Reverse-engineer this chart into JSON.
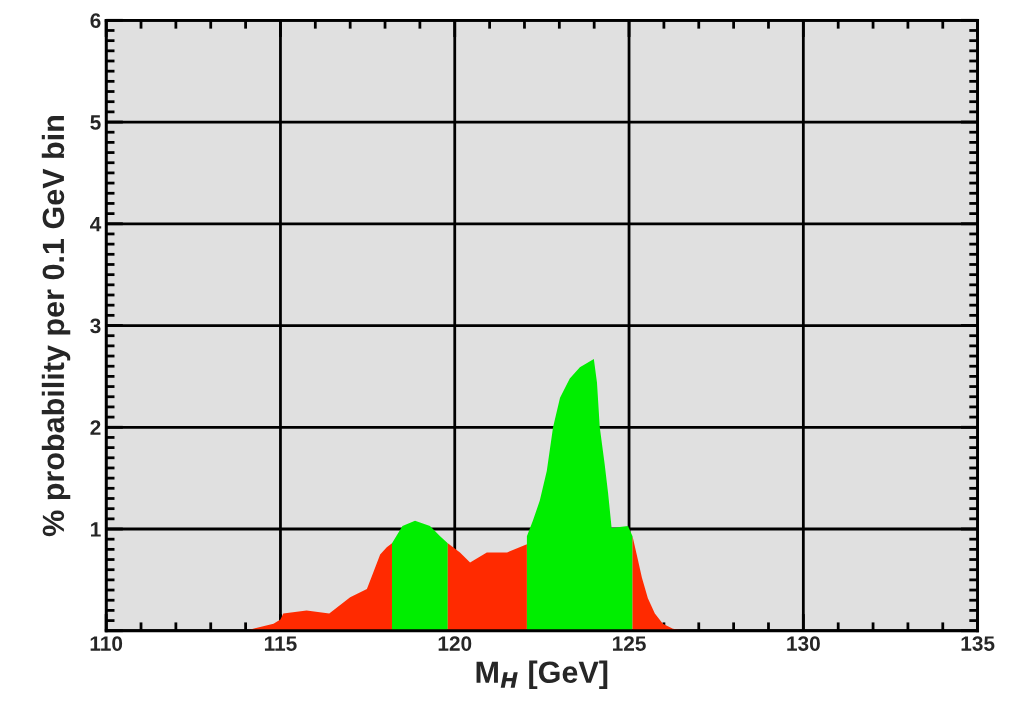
{
  "chart_data": {
    "type": "area",
    "xlabel": "M$_{H}$ [GeV]",
    "ylabel": "% probability per 0.1 GeV bin",
    "xlim": [
      110,
      135
    ],
    "ylim": [
      0,
      6
    ],
    "xticks": [
      110,
      115,
      120,
      125,
      130,
      135
    ],
    "yticks": [
      {
        "value": 0,
        "label": null
      },
      1,
      2,
      3,
      4,
      5,
      6
    ],
    "grid": true,
    "series": [
      {
        "color": "#ff2a00",
        "x": [
          114.0,
          114.8,
          115.0,
          115.08,
          115.75,
          116.4,
          117.0,
          117.48,
          117.66,
          117.86,
          118.05,
          118.2
        ],
        "values": [
          0,
          0.07,
          0.11,
          0.17,
          0.2,
          0.17,
          0.33,
          0.41,
          0.57,
          0.75,
          0.82,
          0.86
        ]
      },
      {
        "color": "#00ee00",
        "x": [
          118.2,
          118.5,
          118.86,
          119.29,
          119.58,
          119.8
        ],
        "values": [
          0.86,
          1.03,
          1.08,
          1.03,
          0.93,
          0.86
        ]
      },
      {
        "color": "#ff2a00",
        "x": [
          119.8,
          120.15,
          120.44,
          120.92,
          121.5,
          122.07
        ],
        "values": [
          0.86,
          0.77,
          0.67,
          0.77,
          0.77,
          0.85
        ]
      },
      {
        "color": "#00ee00",
        "x": [
          122.07,
          122.24,
          122.44,
          122.64,
          122.82,
          123.02,
          123.3,
          123.59,
          123.99,
          124.08,
          124.16,
          124.3,
          124.4,
          124.5,
          124.97,
          125.1
        ],
        "values": [
          0.93,
          1.08,
          1.28,
          1.57,
          2.0,
          2.29,
          2.48,
          2.59,
          2.67,
          2.44,
          2.0,
          1.64,
          1.35,
          1.01,
          1.03,
          0.93
        ]
      },
      {
        "color": "#ff2a00",
        "x": [
          125.1,
          125.22,
          125.37,
          125.54,
          125.74,
          125.97,
          126.26,
          126.66
        ],
        "values": [
          0.93,
          0.75,
          0.52,
          0.32,
          0.17,
          0.07,
          0.02,
          0
        ]
      }
    ]
  }
}
